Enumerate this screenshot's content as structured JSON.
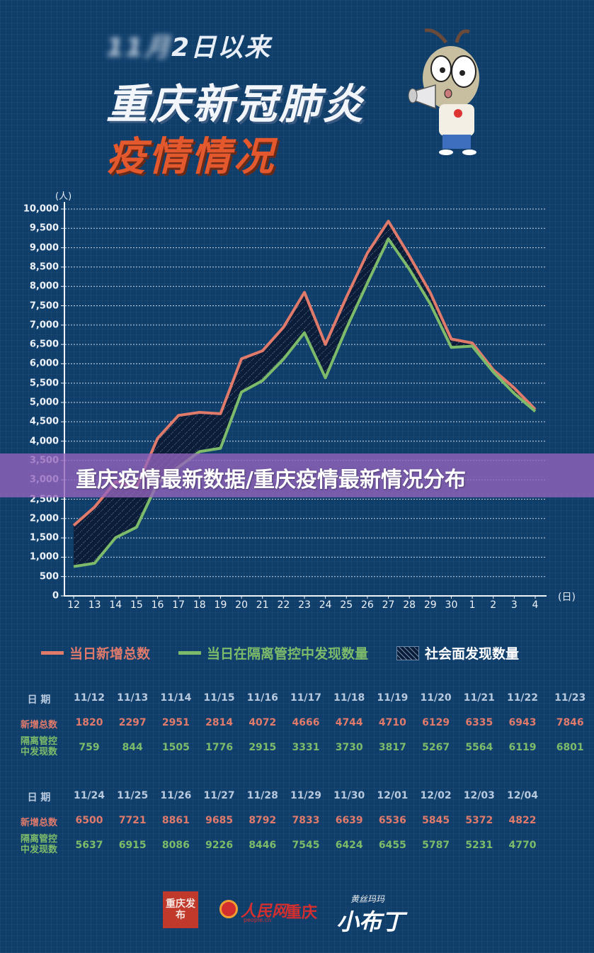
{
  "header": {
    "subtitle_blurred": "11月",
    "subtitle": "2日以来",
    "title": "重庆新冠肺炎",
    "title_accent": "疫情情况"
  },
  "banner": {
    "text": "重庆疫情最新数据/重庆疫情最新情况分布"
  },
  "colors": {
    "background": "#0f3e6b",
    "total": "#e07a6a",
    "controlled": "#7dbb6a",
    "hatch": "#0b1d38",
    "banner": "#9664be",
    "accent_title": "#e4582d"
  },
  "chart_data": {
    "type": "line",
    "title": "重庆新冠肺炎疫情情况",
    "xlabel": "(日)",
    "ylabel": "(人)",
    "x": [
      "12",
      "13",
      "14",
      "15",
      "16",
      "17",
      "18",
      "19",
      "20",
      "21",
      "22",
      "23",
      "24",
      "25",
      "26",
      "27",
      "28",
      "29",
      "30",
      "1",
      "2",
      "3",
      "4"
    ],
    "yticks": [
      "0",
      "500",
      "1,000",
      "1,500",
      "2,000",
      "2,500",
      "3,000",
      "3,500",
      "4,000",
      "4,500",
      "5,000",
      "5,500",
      "6,000",
      "6,500",
      "7,000",
      "7,500",
      "8,000",
      "8,500",
      "9,000",
      "9,500",
      "10,000"
    ],
    "ylim": [
      0,
      10000
    ],
    "grid": true,
    "legend_position": "bottom",
    "series": [
      {
        "name": "当日新增总数",
        "color": "#e07a6a",
        "values": [
          1820,
          2297,
          2951,
          2814,
          4072,
          4666,
          4744,
          4710,
          6129,
          6335,
          6943,
          7846,
          6500,
          7721,
          8861,
          9685,
          8792,
          7833,
          6639,
          6536,
          5845,
          5372,
          4822
        ]
      },
      {
        "name": "当日在隔离管控中发现数量",
        "color": "#7dbb6a",
        "values": [
          759,
          844,
          1505,
          1776,
          2915,
          3331,
          3730,
          3817,
          5267,
          5564,
          6119,
          6801,
          5637,
          6915,
          8086,
          9226,
          8446,
          7545,
          6424,
          6455,
          5787,
          5231,
          4770
        ]
      }
    ],
    "area": {
      "name": "社会面发现数量",
      "between": [
        "当日新增总数",
        "当日在隔离管控中发现数量"
      ],
      "style": "hatched"
    }
  },
  "legend": [
    {
      "label": "当日新增总数",
      "type": "line",
      "color": "#e07a6a"
    },
    {
      "label": "当日在隔离管控中发现数量",
      "type": "line",
      "color": "#7dbb6a"
    },
    {
      "label": "社会面发现数量",
      "type": "hatch",
      "color": "#ffffff"
    }
  ],
  "tables": [
    {
      "labels": {
        "date": "日 期",
        "total": "新增总数",
        "controlled_1": "隔离管控",
        "controlled_2": "中发现数"
      },
      "dates": [
        "11/12",
        "11/13",
        "11/14",
        "11/15",
        "11/16",
        "11/17",
        "11/18",
        "11/19",
        "11/20",
        "11/21",
        "11/22",
        "11/23"
      ],
      "total": [
        "1820",
        "2297",
        "2951",
        "2814",
        "4072",
        "4666",
        "4744",
        "4710",
        "6129",
        "6335",
        "6943",
        "7846"
      ],
      "controlled": [
        "759",
        "844",
        "1505",
        "1776",
        "2915",
        "3331",
        "3730",
        "3817",
        "5267",
        "5564",
        "6119",
        "6801"
      ]
    },
    {
      "labels": {
        "date": "日 期",
        "total": "新增总数",
        "controlled_1": "隔离管控",
        "controlled_2": "中发现数"
      },
      "dates": [
        "11/24",
        "11/25",
        "11/26",
        "11/27",
        "11/28",
        "11/29",
        "11/30",
        "12/01",
        "12/02",
        "12/03",
        "12/04"
      ],
      "total": [
        "6500",
        "7721",
        "8861",
        "9685",
        "8792",
        "7833",
        "6639",
        "6536",
        "5845",
        "5372",
        "4822"
      ],
      "controlled": [
        "5637",
        "6915",
        "8086",
        "9226",
        "8446",
        "7545",
        "6424",
        "6455",
        "5787",
        "5231",
        "4770"
      ]
    }
  ],
  "footer": {
    "seal_text": "重庆发布",
    "people_logo": "人民网",
    "people_sub": "people.cn",
    "people_city": "重庆",
    "brand_small": "黄丝玛玛",
    "brand_big": "小布丁"
  }
}
